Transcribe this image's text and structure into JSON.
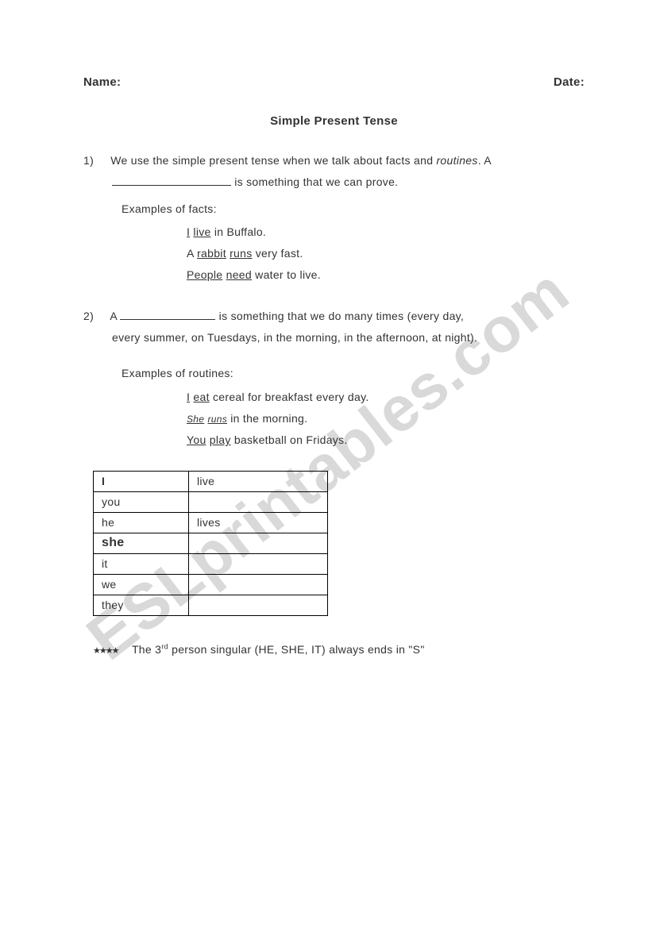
{
  "watermark": "ESLprintables.com",
  "header": {
    "name_label": "Name:",
    "date_label": "Date:"
  },
  "title": "Simple Present Tense",
  "q1": {
    "num": "1)",
    "text_before": "We use the simple present tense when we talk about facts and ",
    "italic_word": "routines",
    "text_after1": ". A",
    "text_after2": " is something that we can prove.",
    "examples_label": "Examples of facts:",
    "ex1": {
      "a": "I",
      "b": "live",
      "c": " in Buffalo."
    },
    "ex2": {
      "a": "A ",
      "b": "rabbit",
      "c": " ",
      "d": "runs",
      "e": " very fast."
    },
    "ex3": {
      "a": "People",
      "b": " ",
      "c": "need",
      "d": " water to live."
    }
  },
  "q2": {
    "num": "2)",
    "text_before": "A ",
    "text_after1": " is something that we do many times (every day,",
    "cont": "every summer, on Tuesdays, in the morning, in the afternoon, at night).",
    "examples_label": "Examples of routines:",
    "ex1": {
      "a": "I",
      "b": " ",
      "c": "eat",
      "d": " cereal for breakfast every day."
    },
    "ex2": {
      "a": "She",
      "b": " ",
      "c": "runs",
      "d": " in the morning."
    },
    "ex3": {
      "a": "You",
      "b": " ",
      "c": "play",
      "d": " basketball on Fridays."
    }
  },
  "table": {
    "rows": [
      {
        "pronoun": "I",
        "verb": "live",
        "pbold": true
      },
      {
        "pronoun": "you",
        "verb": "",
        "pbold": false
      },
      {
        "pronoun": "he",
        "verb": "lives",
        "pbold": false
      },
      {
        "pronoun": "she",
        "verb": "",
        "pbold": true
      },
      {
        "pronoun": "it",
        "verb": "",
        "pbold": false
      },
      {
        "pronoun": "we",
        "verb": "",
        "pbold": false
      },
      {
        "pronoun": "they",
        "verb": "",
        "pbold": false
      }
    ]
  },
  "note": {
    "stars": "★★★★",
    "a": "The 3",
    "sup": "rd",
    "b": " person singular (HE, SHE, IT) always ends in \"S\""
  }
}
